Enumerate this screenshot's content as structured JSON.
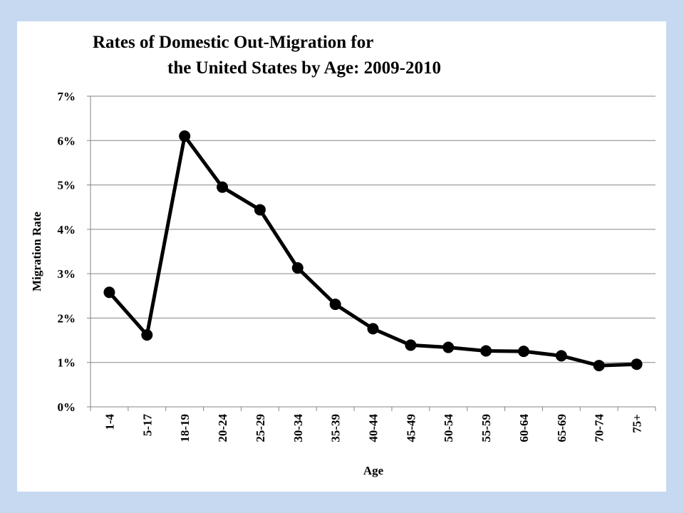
{
  "chart_data": {
    "type": "line",
    "title": [
      "Rates of Domestic Out-Migration for",
      "the United States by Age: 2009-2010"
    ],
    "xlabel": "Age",
    "ylabel": "Migration Rate",
    "categories": [
      "1-4",
      "5-17",
      "18-19",
      "20-24",
      "25-29",
      "30-34",
      "35-39",
      "40-44",
      "45-49",
      "50-54",
      "55-59",
      "60-64",
      "65-69",
      "70-74",
      "75+"
    ],
    "values": [
      2.58,
      1.62,
      6.1,
      4.95,
      4.44,
      3.13,
      2.31,
      1.76,
      1.39,
      1.34,
      1.26,
      1.25,
      1.15,
      0.93,
      0.96
    ],
    "value_unit": "percent",
    "ylim": [
      0,
      7
    ],
    "yticks": [
      0,
      1,
      2,
      3,
      4,
      5,
      6,
      7
    ],
    "ytick_labels": [
      "0%",
      "1%",
      "2%",
      "3%",
      "4%",
      "5%",
      "6%",
      "7%"
    ],
    "grid": true,
    "legend": "none",
    "colors": {
      "line": "#000000",
      "marker": "#000000",
      "grid": "#868686",
      "background": "#c6d9f1"
    }
  }
}
